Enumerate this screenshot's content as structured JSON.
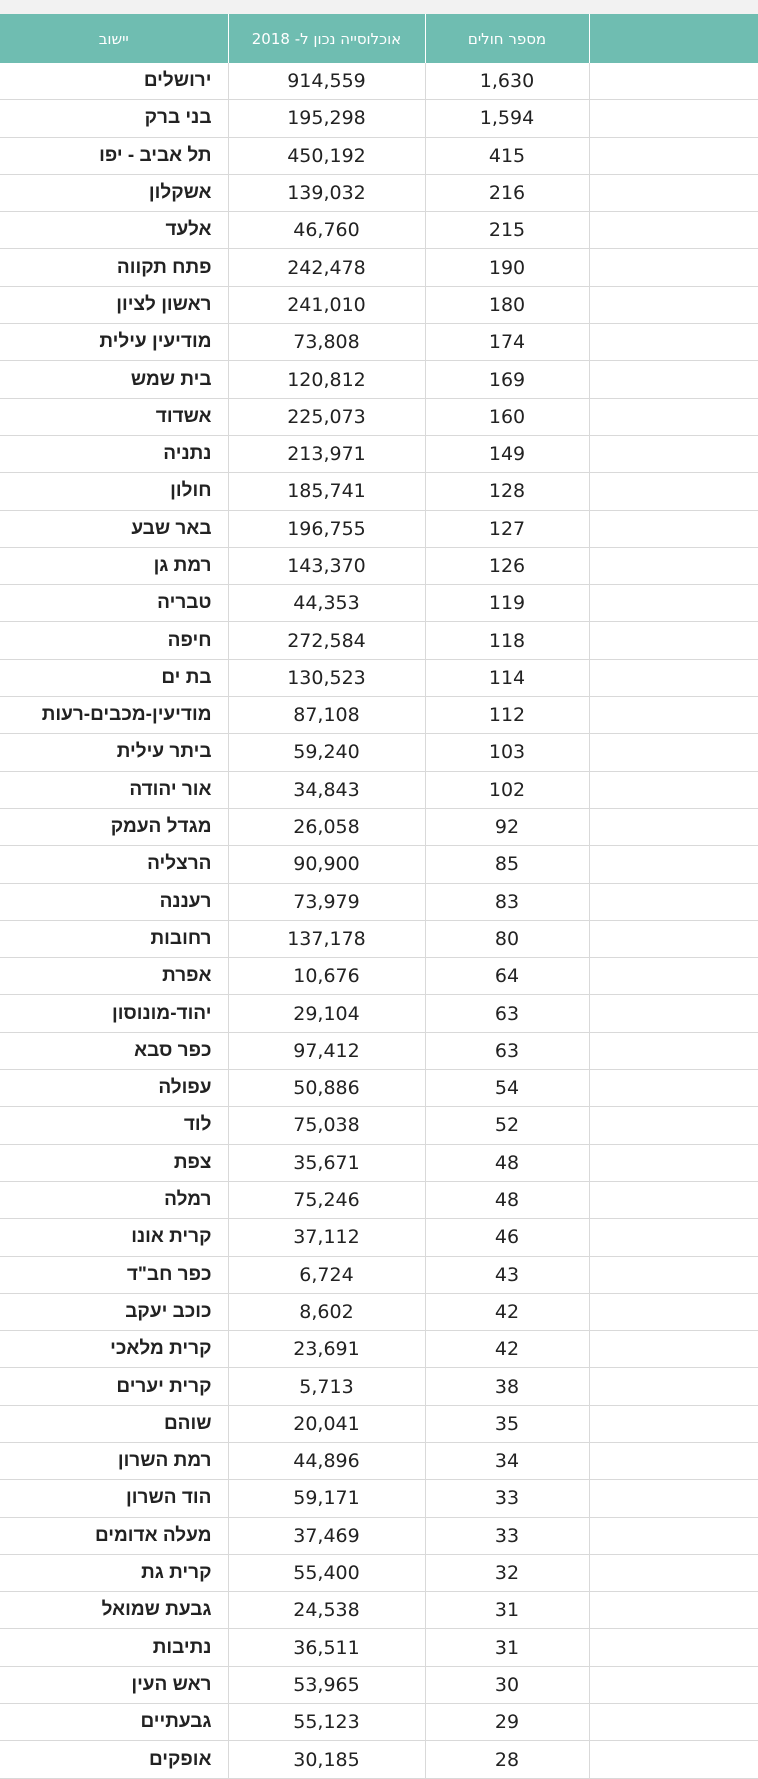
{
  "table": {
    "headers": {
      "city": "יישוב",
      "population": "אוכלוסייה נכון ל- 2018",
      "patients": "מספר חולים"
    },
    "rows": [
      {
        "city": "ירושלים",
        "population": "914,559",
        "patients": "1,630"
      },
      {
        "city": "בני ברק",
        "population": "195,298",
        "patients": "1,594"
      },
      {
        "city": "תל אביב - יפו",
        "population": "450,192",
        "patients": "415"
      },
      {
        "city": "אשקלון",
        "population": "139,032",
        "patients": "216"
      },
      {
        "city": "אלעד",
        "population": "46,760",
        "patients": "215"
      },
      {
        "city": "פתח תקווה",
        "population": "242,478",
        "patients": "190"
      },
      {
        "city": "ראשון לציון",
        "population": "241,010",
        "patients": "180"
      },
      {
        "city": "מודיעין עילית",
        "population": "73,808",
        "patients": "174"
      },
      {
        "city": "בית שמש",
        "population": "120,812",
        "patients": "169"
      },
      {
        "city": "אשדוד",
        "population": "225,073",
        "patients": "160"
      },
      {
        "city": "נתניה",
        "population": "213,971",
        "patients": "149"
      },
      {
        "city": "חולון",
        "population": "185,741",
        "patients": "128"
      },
      {
        "city": "באר שבע",
        "population": "196,755",
        "patients": "127"
      },
      {
        "city": "רמת גן",
        "population": "143,370",
        "patients": "126"
      },
      {
        "city": "טבריה",
        "population": "44,353",
        "patients": "119"
      },
      {
        "city": "חיפה",
        "population": "272,584",
        "patients": "118"
      },
      {
        "city": "בת ים",
        "population": "130,523",
        "patients": "114"
      },
      {
        "city": "מודיעין-מכבים-רעות",
        "population": "87,108",
        "patients": "112"
      },
      {
        "city": "ביתר עילית",
        "population": "59,240",
        "patients": "103"
      },
      {
        "city": "אור יהודה",
        "population": "34,843",
        "patients": "102"
      },
      {
        "city": "מגדל העמק",
        "population": "26,058",
        "patients": "92"
      },
      {
        "city": "הרצליה",
        "population": "90,900",
        "patients": "85"
      },
      {
        "city": "רעננה",
        "population": "73,979",
        "patients": "83"
      },
      {
        "city": "רחובות",
        "population": "137,178",
        "patients": "80"
      },
      {
        "city": "אפרת",
        "population": "10,676",
        "patients": "64"
      },
      {
        "city": "יהוד-מונוסון",
        "population": "29,104",
        "patients": "63"
      },
      {
        "city": "כפר סבא",
        "population": "97,412",
        "patients": "63"
      },
      {
        "city": "עפולה",
        "population": "50,886",
        "patients": "54"
      },
      {
        "city": "לוד",
        "population": "75,038",
        "patients": "52"
      },
      {
        "city": "צפת",
        "population": "35,671",
        "patients": "48"
      },
      {
        "city": "רמלה",
        "population": "75,246",
        "patients": "48"
      },
      {
        "city": "קרית אונו",
        "population": "37,112",
        "patients": "46"
      },
      {
        "city": "כפר חב\"ד",
        "population": "6,724",
        "patients": "43"
      },
      {
        "city": "כוכב יעקב",
        "population": "8,602",
        "patients": "42"
      },
      {
        "city": "קרית מלאכי",
        "population": "23,691",
        "patients": "42"
      },
      {
        "city": "קרית יערים",
        "population": "5,713",
        "patients": "38"
      },
      {
        "city": "שוהם",
        "population": "20,041",
        "patients": "35"
      },
      {
        "city": "רמת השרון",
        "population": "44,896",
        "patients": "34"
      },
      {
        "city": "הוד השרון",
        "population": "59,171",
        "patients": "33"
      },
      {
        "city": "מעלה אדומים",
        "population": "37,469",
        "patients": "33"
      },
      {
        "city": "קרית גת",
        "population": "55,400",
        "patients": "32"
      },
      {
        "city": "גבעת שמואל",
        "population": "24,538",
        "patients": "31"
      },
      {
        "city": "נתיבות",
        "population": "36,511",
        "patients": "31"
      },
      {
        "city": "ראש העין",
        "population": "53,965",
        "patients": "30"
      },
      {
        "city": "גבעתיים",
        "population": "55,123",
        "patients": "29"
      },
      {
        "city": "אופקים",
        "population": "30,185",
        "patients": "28"
      }
    ]
  }
}
